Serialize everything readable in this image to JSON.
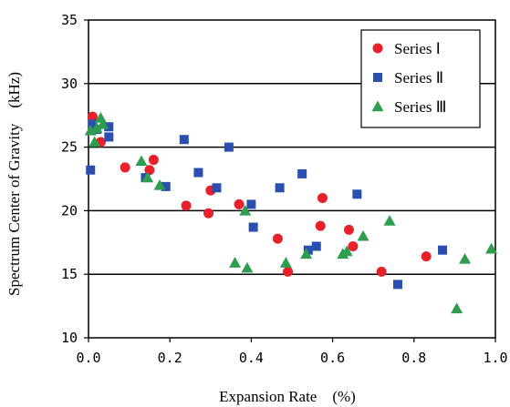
{
  "chart_data": {
    "type": "scatter",
    "xlabel": "Expansion Rate　(%)",
    "ylabel": "Spectrum Center of Gravity　(kHz)",
    "xlim": [
      0.0,
      1.0
    ],
    "ylim": [
      10,
      35
    ],
    "x_tick_labels": [
      "0.0",
      "0.2",
      "0.4",
      "0.6",
      "0.8",
      "1.0"
    ],
    "y_tick_labels": [
      "10",
      "15",
      "20",
      "25",
      "30",
      "35"
    ],
    "x_ticks": [
      0.0,
      0.2,
      0.4,
      0.6,
      0.8,
      1.0
    ],
    "y_ticks": [
      10,
      15,
      20,
      25,
      30,
      35
    ],
    "grid": "horizontal",
    "legend_position": "top-right",
    "series": [
      {
        "name": "Series Ⅰ",
        "marker": "circle",
        "color": "#e8202a",
        "points": [
          [
            0.01,
            27.4
          ],
          [
            0.03,
            25.4
          ],
          [
            0.09,
            23.4
          ],
          [
            0.15,
            23.2
          ],
          [
            0.16,
            24.0
          ],
          [
            0.24,
            20.4
          ],
          [
            0.295,
            19.8
          ],
          [
            0.3,
            21.6
          ],
          [
            0.37,
            20.5
          ],
          [
            0.465,
            17.8
          ],
          [
            0.49,
            15.2
          ],
          [
            0.57,
            18.8
          ],
          [
            0.575,
            21.0
          ],
          [
            0.64,
            18.5
          ],
          [
            0.65,
            17.2
          ],
          [
            0.72,
            15.2
          ],
          [
            0.83,
            16.4
          ]
        ]
      },
      {
        "name": "Series Ⅱ",
        "marker": "square",
        "color": "#2a4fb0",
        "points": [
          [
            0.005,
            23.2
          ],
          [
            0.01,
            26.8
          ],
          [
            0.02,
            26.4
          ],
          [
            0.05,
            26.6
          ],
          [
            0.05,
            25.8
          ],
          [
            0.14,
            22.6
          ],
          [
            0.19,
            21.9
          ],
          [
            0.235,
            25.6
          ],
          [
            0.27,
            23.0
          ],
          [
            0.315,
            21.8
          ],
          [
            0.345,
            25.0
          ],
          [
            0.4,
            20.5
          ],
          [
            0.405,
            18.7
          ],
          [
            0.47,
            21.8
          ],
          [
            0.525,
            22.9
          ],
          [
            0.54,
            16.9
          ],
          [
            0.56,
            17.2
          ],
          [
            0.66,
            21.3
          ],
          [
            0.76,
            14.2
          ],
          [
            0.87,
            16.9
          ]
        ]
      },
      {
        "name": "Series Ⅲ",
        "marker": "triangle",
        "color": "#2e9e4e",
        "points": [
          [
            0.005,
            26.3
          ],
          [
            0.015,
            25.4
          ],
          [
            0.02,
            26.5
          ],
          [
            0.03,
            27.3
          ],
          [
            0.035,
            26.8
          ],
          [
            0.13,
            23.9
          ],
          [
            0.145,
            22.6
          ],
          [
            0.175,
            22.0
          ],
          [
            0.36,
            15.9
          ],
          [
            0.385,
            20.0
          ],
          [
            0.39,
            15.5
          ],
          [
            0.485,
            15.9
          ],
          [
            0.535,
            16.6
          ],
          [
            0.625,
            16.6
          ],
          [
            0.635,
            16.8
          ],
          [
            0.675,
            18.0
          ],
          [
            0.74,
            19.2
          ],
          [
            0.905,
            12.3
          ],
          [
            0.925,
            16.2
          ],
          [
            0.99,
            17.0
          ]
        ]
      }
    ]
  }
}
